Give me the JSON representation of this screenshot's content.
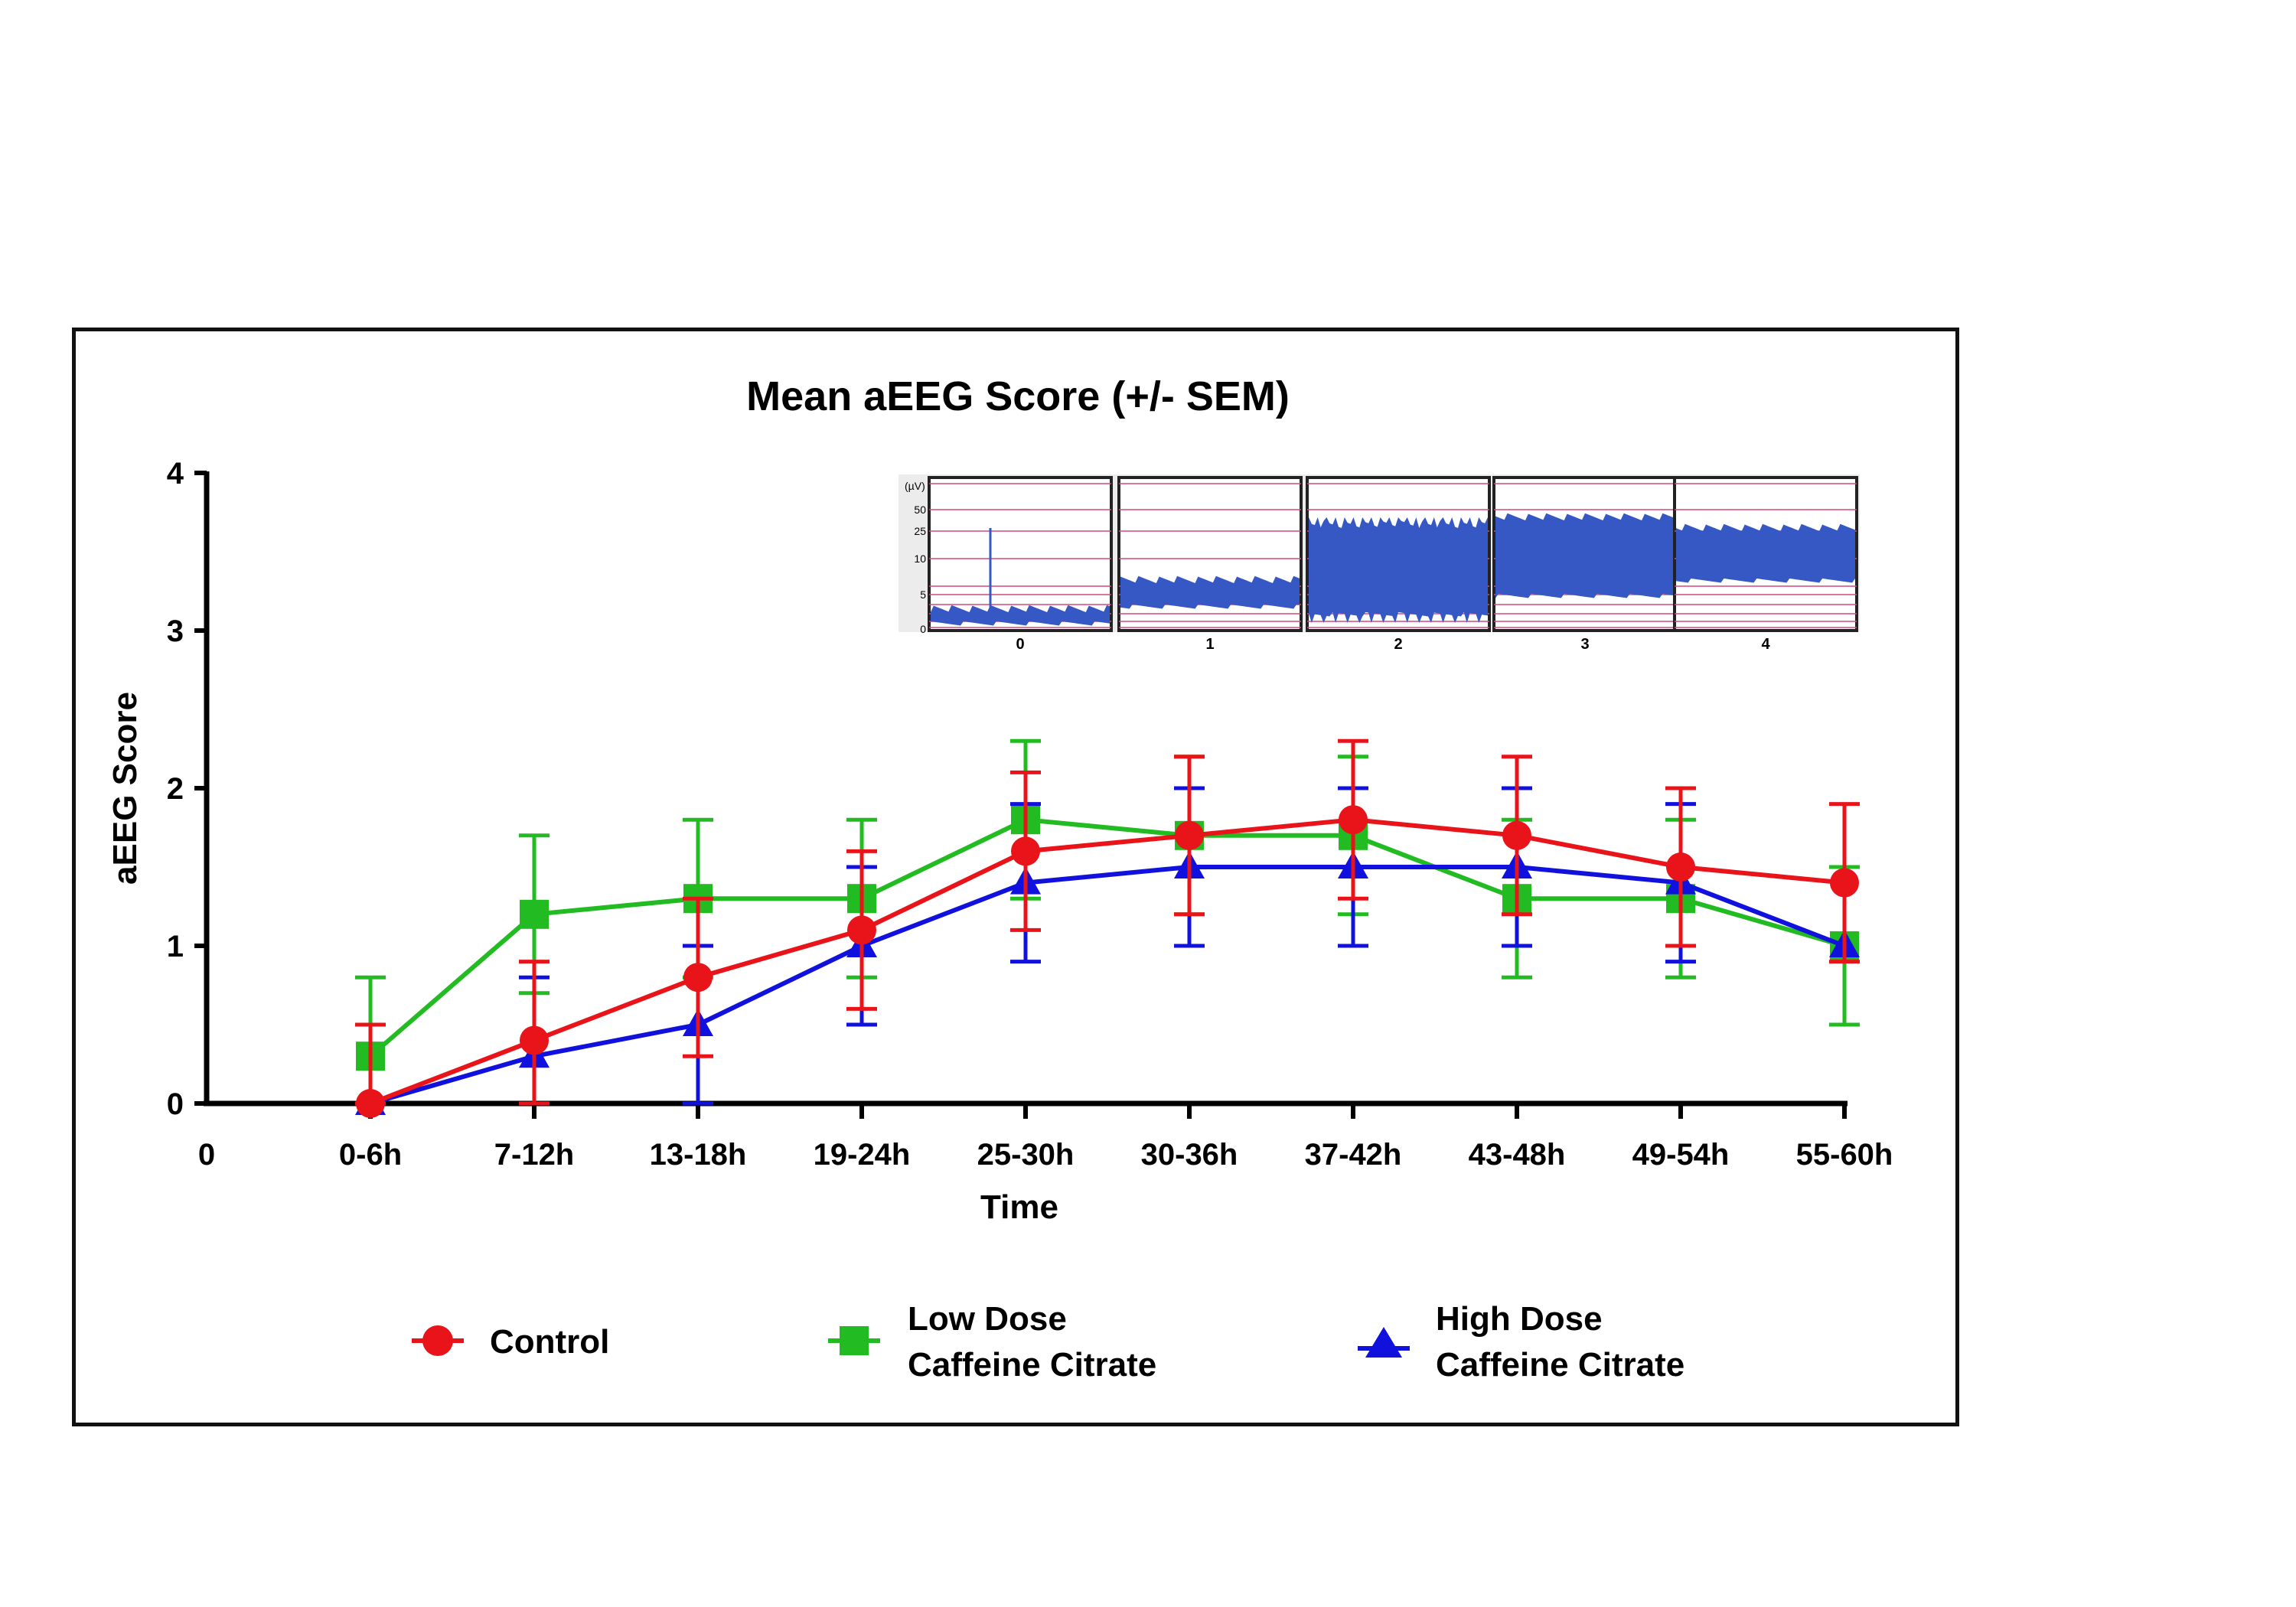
{
  "chart_data": {
    "type": "line",
    "title": "Mean aEEG Score  (+/- SEM)",
    "xlabel": "Time",
    "ylabel": "aEEG Score",
    "ylim": [
      0,
      4
    ],
    "yticks": [
      "0",
      "1",
      "2",
      "3",
      "4"
    ],
    "x_origin_label": "0",
    "categories": [
      "0-6h",
      "7-12h",
      "13-18h",
      "19-24h",
      "25-30h",
      "30-36h",
      "37-42h",
      "43-48h",
      "49-54h",
      "55-60h"
    ],
    "grid": false,
    "legend_position": "bottom",
    "series": [
      {
        "name": "Control",
        "color": "#e8141a",
        "marker": "circle",
        "values": [
          0.0,
          0.4,
          0.8,
          1.1,
          1.6,
          1.7,
          1.8,
          1.7,
          1.5,
          1.4
        ],
        "error": [
          0.5,
          0.5,
          0.5,
          0.5,
          0.5,
          0.5,
          0.5,
          0.5,
          0.5,
          0.5
        ]
      },
      {
        "name": "Low Dose Caffeine Citrate",
        "color": "#22bb22",
        "marker": "square",
        "values": [
          0.3,
          1.2,
          1.3,
          1.3,
          1.8,
          1.7,
          1.7,
          1.3,
          1.3,
          1.0
        ],
        "error": [
          0.5,
          0.5,
          0.5,
          0.5,
          0.5,
          0.5,
          0.5,
          0.5,
          0.5,
          0.5
        ]
      },
      {
        "name": "High Dose Caffeine Citrate",
        "color": "#1111dd",
        "marker": "triangle",
        "values": [
          0.0,
          0.3,
          0.5,
          1.0,
          1.4,
          1.5,
          1.5,
          1.5,
          1.4,
          1.0
        ],
        "error": [
          0.0,
          0.5,
          0.5,
          0.5,
          0.5,
          0.5,
          0.5,
          0.5,
          0.5,
          0.0
        ]
      }
    ],
    "legend": {
      "control": "Control",
      "low_line1": "Low Dose",
      "low_line2": "Caffeine Citrate",
      "high_line1": "High Dose",
      "high_line2": "Caffeine Citrate"
    },
    "inset": {
      "y_unit": "(µV)",
      "y_ticks": [
        "50",
        "25",
        "10",
        "5",
        "0"
      ],
      "panel_labels": [
        "0",
        "1",
        "2",
        "3",
        "4"
      ]
    }
  }
}
